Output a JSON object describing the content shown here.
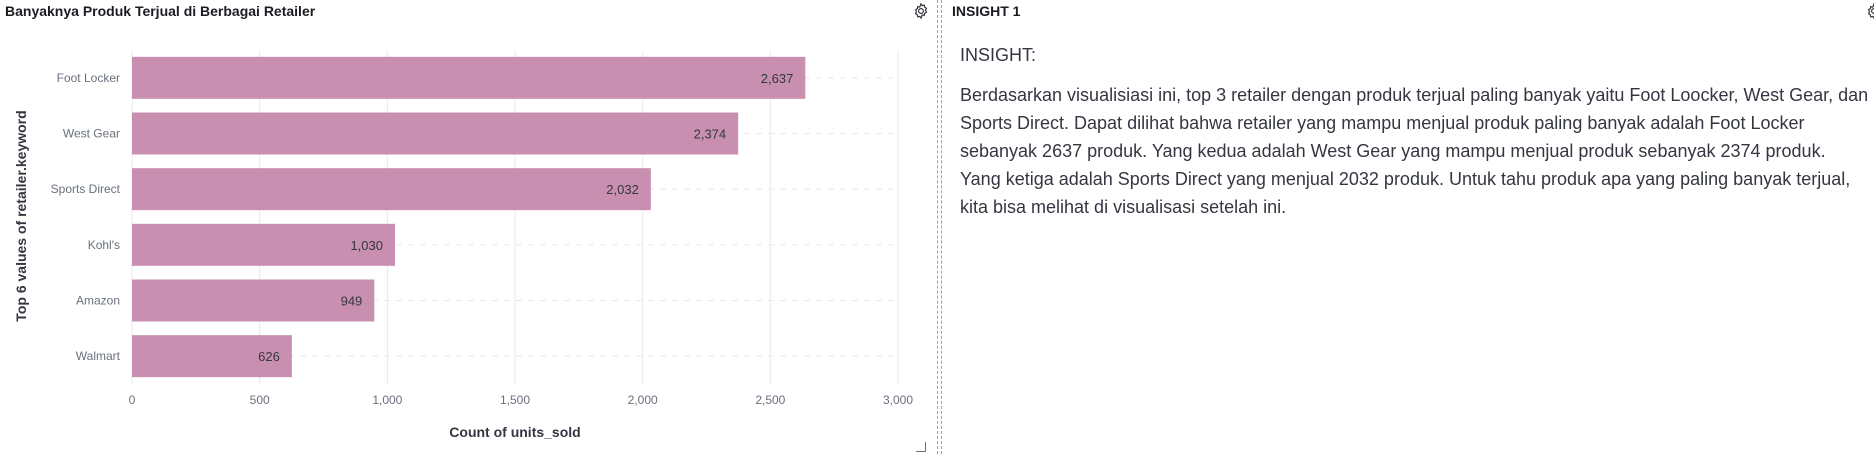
{
  "chart_panel": {
    "title": "Banyaknya Produk Terjual di Berbagai Retailer"
  },
  "insight_panel": {
    "title": "INSIGHT 1",
    "heading": "INSIGHT:",
    "body": "Berdasarkan visualisiasi ini, top 3 retailer dengan produk terjual paling banyak yaitu Foot Loocker, West Gear, dan Sports Direct. Dapat dilihat bahwa retailer yang mampu menjual produk paling banyak adalah Foot Locker sebanyak 2637 produk. Yang kedua adalah West Gear yang mampu menjual produk sebanyak 2374 produk. Yang ketiga adalah Sports Direct yang menjual 2032 produk. Untuk tahu produk apa yang paling banyak terjual, kita bisa melihat di visualisasi setelah ini."
  },
  "icons": {
    "panel_options": "gear-icon",
    "resize": "resize-handle-icon"
  },
  "colors": {
    "bar": "#c98fb0",
    "grid": "#e6e8ec",
    "axis_text": "#69707d",
    "label_text": "#343741"
  },
  "chart_data": {
    "type": "bar",
    "orientation": "horizontal",
    "title": "",
    "xlabel": "Count of units_sold",
    "ylabel": "Top 6 values of retailer.keyword",
    "categories": [
      "Foot Locker",
      "West Gear",
      "Sports Direct",
      "Kohl's",
      "Amazon",
      "Walmart"
    ],
    "values": [
      2637,
      2374,
      2032,
      1030,
      949,
      626
    ],
    "value_labels": [
      "2,637",
      "2,374",
      "2,032",
      "1,030",
      "949",
      "626"
    ],
    "xlim": [
      0,
      3000
    ],
    "x_ticks": [
      0,
      500,
      1000,
      1500,
      2000,
      2500,
      3000
    ],
    "x_tick_labels": [
      "0",
      "500",
      "1,000",
      "1,500",
      "2,000",
      "2,500",
      "3,000"
    ],
    "grid": true,
    "legend": "none"
  }
}
